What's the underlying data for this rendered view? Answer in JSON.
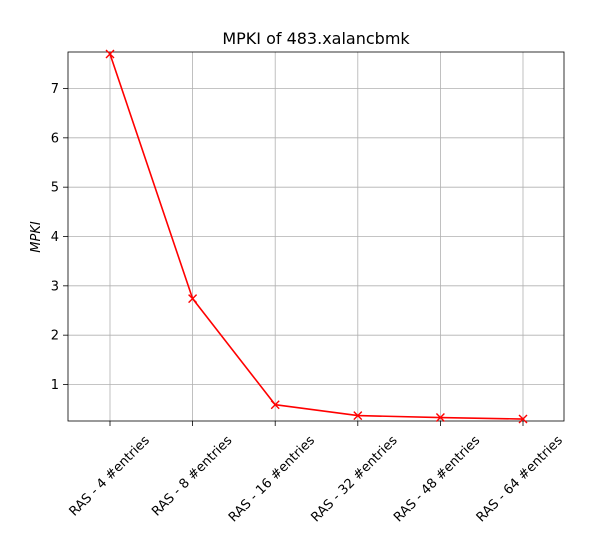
{
  "chart_data": {
    "type": "line",
    "title": "MPKI of 483.xalancbmk",
    "xlabel": "",
    "ylabel": "MPKI",
    "categories": [
      "RAS - 4 #entries",
      "RAS - 8 #entries",
      "RAS - 16 #entries",
      "RAS - 32 #entries",
      "RAS - 48 #entries",
      "RAS - 64 #entries"
    ],
    "series": [
      {
        "values": [
          7.7,
          2.74,
          0.59,
          0.37,
          0.33,
          0.3
        ],
        "color": "#ff0000",
        "marker": "x"
      }
    ],
    "yticks": [
      1,
      2,
      3,
      4,
      5,
      6,
      7
    ],
    "ylim": [
      0.26,
      7.74
    ],
    "grid": true
  }
}
